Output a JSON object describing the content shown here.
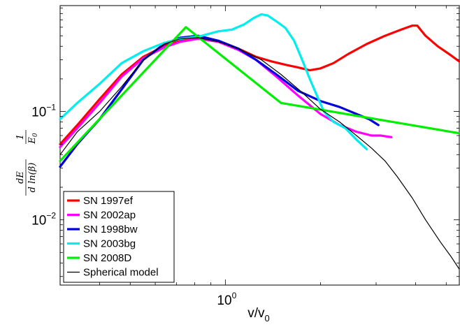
{
  "chart_data": {
    "type": "line",
    "xscale": "log",
    "yscale": "log",
    "xlim": [
      0.3,
      5.5
    ],
    "ylim": [
      0.0025,
      0.95
    ],
    "xlabel": "v/v",
    "xlabel_sub": "0",
    "ylabel": {
      "num1": "dE",
      "den1": "d ln(β)",
      "num2": "1",
      "den2": "E",
      "den2_sub": "0"
    },
    "x_ticks": [
      {
        "value": 1,
        "base": "10",
        "exp": "0"
      }
    ],
    "y_ticks": [
      {
        "value": 0.1,
        "base": "10",
        "exp": "−1"
      },
      {
        "value": 0.01,
        "base": "10",
        "exp": "−2"
      }
    ],
    "grid": false,
    "legend_position": "bottom-left",
    "series": [
      {
        "name": "SN 1997ef",
        "color": "#ff0000",
        "width": 3.2,
        "x": [
          0.3,
          0.34,
          0.4,
          0.47,
          0.55,
          0.64,
          0.72,
          0.82,
          0.95,
          1.1,
          1.25,
          1.4,
          1.55,
          1.7,
          1.85,
          2.0,
          2.2,
          2.45,
          2.8,
          3.2,
          3.6,
          3.9,
          4.05,
          4.3,
          4.7,
          5.1,
          5.5
        ],
        "y": [
          0.05,
          0.075,
          0.13,
          0.22,
          0.32,
          0.4,
          0.46,
          0.48,
          0.45,
          0.38,
          0.32,
          0.29,
          0.27,
          0.255,
          0.24,
          0.25,
          0.28,
          0.34,
          0.42,
          0.5,
          0.57,
          0.62,
          0.62,
          0.5,
          0.4,
          0.34,
          0.29
        ]
      },
      {
        "name": "SN 2002ap",
        "color": "#ff00ff",
        "width": 3.2,
        "x": [
          0.3,
          0.34,
          0.4,
          0.47,
          0.55,
          0.64,
          0.72,
          0.82,
          0.95,
          1.1,
          1.25,
          1.45,
          1.7,
          2.0,
          2.3,
          2.6,
          2.9,
          3.1,
          3.35
        ],
        "y": [
          0.047,
          0.07,
          0.12,
          0.21,
          0.31,
          0.39,
          0.44,
          0.47,
          0.44,
          0.37,
          0.3,
          0.21,
          0.14,
          0.095,
          0.075,
          0.065,
          0.06,
          0.06,
          0.058
        ]
      },
      {
        "name": "SN 1998bw",
        "color": "#0000dd",
        "width": 3.2,
        "x": [
          0.3,
          0.34,
          0.4,
          0.47,
          0.55,
          0.64,
          0.72,
          0.82,
          0.95,
          1.1,
          1.25,
          1.45,
          1.7,
          2.0,
          2.3,
          2.6,
          2.85,
          3.05
        ],
        "y": [
          0.031,
          0.05,
          0.085,
          0.16,
          0.3,
          0.42,
          0.48,
          0.5,
          0.45,
          0.38,
          0.3,
          0.22,
          0.155,
          0.125,
          0.11,
          0.095,
          0.085,
          0.075
        ]
      },
      {
        "name": "SN 2003bg",
        "color": "#00eeee",
        "width": 3.2,
        "x": [
          0.3,
          0.34,
          0.4,
          0.47,
          0.55,
          0.64,
          0.72,
          0.82,
          0.95,
          1.05,
          1.15,
          1.23,
          1.3,
          1.36,
          1.45,
          1.55,
          1.65,
          1.75,
          1.85,
          1.95,
          2.05,
          2.2,
          2.4,
          2.6,
          2.8
        ],
        "y": [
          0.085,
          0.12,
          0.18,
          0.28,
          0.36,
          0.43,
          0.47,
          0.49,
          0.55,
          0.57,
          0.64,
          0.73,
          0.79,
          0.77,
          0.68,
          0.59,
          0.45,
          0.3,
          0.2,
          0.14,
          0.1,
          0.08,
          0.07,
          0.055,
          0.045
        ]
      },
      {
        "name": "SN 2008D",
        "color": "#00ee00",
        "width": 3.2,
        "x": [
          0.3,
          0.75,
          1.5,
          5.5
        ],
        "y": [
          0.035,
          0.6,
          0.12,
          0.063
        ]
      },
      {
        "name": "Spherical model",
        "color": "#000000",
        "width": 1.2,
        "x": [
          0.3,
          0.34,
          0.4,
          0.47,
          0.55,
          0.64,
          0.72,
          0.82,
          0.95,
          1.1,
          1.3,
          1.5,
          1.75,
          2.0,
          2.3,
          2.6,
          2.9,
          3.2,
          3.5,
          3.9,
          4.3,
          4.8,
          5.2,
          5.5
        ],
        "y": [
          0.04,
          0.065,
          0.1,
          0.17,
          0.3,
          0.42,
          0.47,
          0.48,
          0.44,
          0.38,
          0.3,
          0.22,
          0.15,
          0.105,
          0.08,
          0.06,
          0.046,
          0.035,
          0.025,
          0.016,
          0.01,
          0.0062,
          0.0045,
          0.0035
        ]
      }
    ]
  }
}
